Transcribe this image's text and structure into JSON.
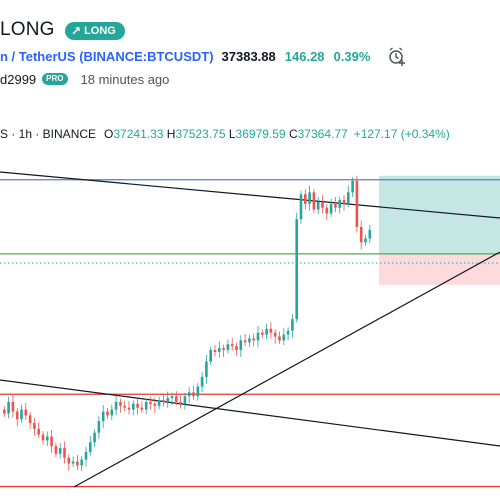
{
  "header": {
    "title": "LONG",
    "badge": "LONG",
    "symbol_text": "n / TetherUS (BINANCE:BTCUSDT)",
    "price": "37383.88",
    "change": "146.28",
    "change_pct": "0.39%",
    "author": "d2999",
    "pro_label": "PRO",
    "time_ago": "18 minutes ago"
  },
  "legend": {
    "symbol": "S · 1h · BINANCE",
    "o_label": "O",
    "o": "37241.33",
    "h_label": "H",
    "h": "37523.75",
    "l_label": "L",
    "l": "36979.59",
    "c_label": "C",
    "c": "37364.77",
    "change": "+127.17 (+0.34%)"
  },
  "colors": {
    "up": "#26a69a",
    "down": "#ef5350",
    "accent_blue": "#2962ff",
    "target_zone": "#b2dfdb",
    "stop_zone": "#ffcdd2",
    "red_line": "#e53935",
    "green_line": "#4caf50",
    "blue_line": "#5b7cc8"
  },
  "chart_data": {
    "type": "candlestick",
    "title": "",
    "xlabel": "",
    "ylabel": "",
    "grid": false,
    "y_range_hint": [
      36000,
      38000
    ],
    "close_path": [
      36410,
      36470,
      36420,
      36380,
      36430,
      36400,
      36360,
      36330,
      36300,
      36270,
      36290,
      36240,
      36200,
      36230,
      36180,
      36150,
      36160,
      36140,
      36170,
      36210,
      36260,
      36310,
      36370,
      36420,
      36400,
      36430,
      36470,
      36450,
      36440,
      36430,
      36460,
      36440,
      36430,
      36470,
      36460,
      36450,
      36480,
      36470,
      36490,
      36500,
      36470,
      36460,
      36500,
      36520,
      36500,
      36550,
      36600,
      36680,
      36740,
      36730,
      36750,
      36740,
      36770,
      36760,
      36740,
      36790,
      36780,
      36800,
      36790,
      36830,
      36820,
      36850,
      36830,
      36810,
      36790,
      36820,
      36840,
      36900,
      37420,
      37550,
      37500,
      37560,
      37470,
      37510,
      37480,
      37450,
      37500,
      37480,
      37520,
      37500,
      37560,
      37620,
      37380,
      37300,
      37320,
      37364
    ],
    "levels": {
      "blue_top": 37620,
      "entry_green": 37240,
      "red_upper": 36510,
      "red_lower": 36030
    }
  }
}
